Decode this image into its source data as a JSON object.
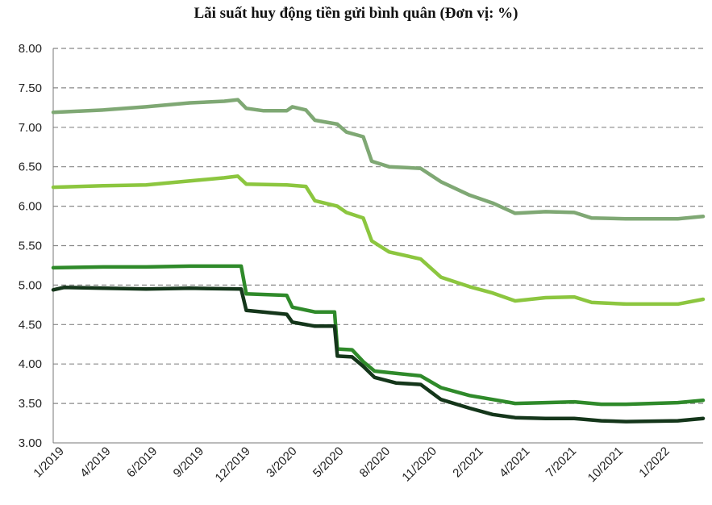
{
  "chart_data": {
    "type": "line",
    "title": "Lãi suất huy động tiền gửi bình quân (Đơn vị: %)",
    "xlabel": "",
    "ylabel": "",
    "ylim": [
      3.0,
      8.0
    ],
    "y_ticks": [
      "8.00",
      "7.50",
      "7.00",
      "6.50",
      "6.00",
      "5.50",
      "5.00",
      "4.50",
      "4.00",
      "3.50",
      "3.00"
    ],
    "x_ticks": [
      "1/2019",
      "4/2019",
      "6/2019",
      "9/2019",
      "12/2019",
      "3/2020",
      "5/2020",
      "8/2020",
      "11/2020",
      "2/2021",
      "4/2021",
      "7/2021",
      "10/2021",
      "1/2022"
    ],
    "x_domain": [
      "2019-01",
      "2022-03"
    ],
    "grid": true,
    "legend": "none",
    "series": [
      {
        "color": "#7fa874",
        "points": [
          [
            "2019-01-01",
            7.19
          ],
          [
            "2019-04-01",
            7.22
          ],
          [
            "2019-06-15",
            7.26
          ],
          [
            "2019-09-01",
            7.31
          ],
          [
            "2019-11-01",
            7.33
          ],
          [
            "2019-11-25",
            7.35
          ],
          [
            "2019-12-10",
            7.24
          ],
          [
            "2020-01-10",
            7.21
          ],
          [
            "2020-02-20",
            7.21
          ],
          [
            "2020-03-01",
            7.26
          ],
          [
            "2020-03-25",
            7.22
          ],
          [
            "2020-04-10",
            7.09
          ],
          [
            "2020-05-20",
            7.04
          ],
          [
            "2020-06-05",
            6.94
          ],
          [
            "2020-07-05",
            6.88
          ],
          [
            "2020-07-20",
            6.57
          ],
          [
            "2020-08-20",
            6.5
          ],
          [
            "2020-10-15",
            6.48
          ],
          [
            "2020-11-20",
            6.31
          ],
          [
            "2021-01-10",
            6.14
          ],
          [
            "2021-02-20",
            6.04
          ],
          [
            "2021-04-01",
            5.91
          ],
          [
            "2021-05-25",
            5.93
          ],
          [
            "2021-07-15",
            5.92
          ],
          [
            "2021-08-15",
            5.85
          ],
          [
            "2021-10-15",
            5.84
          ],
          [
            "2022-01-15",
            5.84
          ],
          [
            "2022-03-01",
            5.87
          ]
        ]
      },
      {
        "color": "#8cc63f",
        "points": [
          [
            "2019-01-01",
            6.24
          ],
          [
            "2019-04-01",
            6.26
          ],
          [
            "2019-06-15",
            6.27
          ],
          [
            "2019-09-01",
            6.32
          ],
          [
            "2019-11-01",
            6.36
          ],
          [
            "2019-11-25",
            6.38
          ],
          [
            "2019-12-10",
            6.28
          ],
          [
            "2020-02-20",
            6.27
          ],
          [
            "2020-03-25",
            6.25
          ],
          [
            "2020-04-10",
            6.07
          ],
          [
            "2020-05-20",
            6.0
          ],
          [
            "2020-06-05",
            5.92
          ],
          [
            "2020-07-05",
            5.85
          ],
          [
            "2020-07-20",
            5.56
          ],
          [
            "2020-08-20",
            5.42
          ],
          [
            "2020-10-15",
            5.33
          ],
          [
            "2020-11-20",
            5.1
          ],
          [
            "2021-01-10",
            4.98
          ],
          [
            "2021-02-20",
            4.9
          ],
          [
            "2021-04-01",
            4.8
          ],
          [
            "2021-05-25",
            4.84
          ],
          [
            "2021-07-15",
            4.85
          ],
          [
            "2021-08-15",
            4.78
          ],
          [
            "2021-10-15",
            4.76
          ],
          [
            "2022-01-15",
            4.76
          ],
          [
            "2022-03-01",
            4.82
          ]
        ]
      },
      {
        "color": "#2f8a2a",
        "points": [
          [
            "2019-01-01",
            5.22
          ],
          [
            "2019-04-01",
            5.23
          ],
          [
            "2019-06-15",
            5.23
          ],
          [
            "2019-09-01",
            5.24
          ],
          [
            "2019-12-01",
            5.24
          ],
          [
            "2019-12-10",
            4.89
          ],
          [
            "2020-02-20",
            4.87
          ],
          [
            "2020-03-01",
            4.72
          ],
          [
            "2020-04-10",
            4.66
          ],
          [
            "2020-05-15",
            4.66
          ],
          [
            "2020-05-20",
            4.19
          ],
          [
            "2020-06-15",
            4.18
          ],
          [
            "2020-07-05",
            4.03
          ],
          [
            "2020-07-25",
            3.91
          ],
          [
            "2020-10-15",
            3.85
          ],
          [
            "2020-11-20",
            3.7
          ],
          [
            "2021-01-10",
            3.6
          ],
          [
            "2021-02-20",
            3.55
          ],
          [
            "2021-04-01",
            3.5
          ],
          [
            "2021-05-25",
            3.51
          ],
          [
            "2021-07-15",
            3.52
          ],
          [
            "2021-09-01",
            3.49
          ],
          [
            "2021-10-15",
            3.49
          ],
          [
            "2022-01-15",
            3.51
          ],
          [
            "2022-03-01",
            3.54
          ]
        ]
      },
      {
        "color": "#14361a",
        "points": [
          [
            "2019-01-01",
            4.94
          ],
          [
            "2019-01-20",
            4.97
          ],
          [
            "2019-04-01",
            4.96
          ],
          [
            "2019-06-15",
            4.95
          ],
          [
            "2019-09-01",
            4.96
          ],
          [
            "2019-12-01",
            4.95
          ],
          [
            "2019-12-10",
            4.68
          ],
          [
            "2020-02-20",
            4.63
          ],
          [
            "2020-03-01",
            4.53
          ],
          [
            "2020-04-10",
            4.48
          ],
          [
            "2020-05-15",
            4.48
          ],
          [
            "2020-05-20",
            4.1
          ],
          [
            "2020-06-15",
            4.09
          ],
          [
            "2020-07-05",
            3.97
          ],
          [
            "2020-07-25",
            3.83
          ],
          [
            "2020-09-01",
            3.76
          ],
          [
            "2020-10-15",
            3.74
          ],
          [
            "2020-11-20",
            3.55
          ],
          [
            "2021-01-10",
            3.44
          ],
          [
            "2021-02-20",
            3.36
          ],
          [
            "2021-04-01",
            3.32
          ],
          [
            "2021-05-25",
            3.31
          ],
          [
            "2021-07-15",
            3.31
          ],
          [
            "2021-09-01",
            3.28
          ],
          [
            "2021-10-15",
            3.27
          ],
          [
            "2022-01-15",
            3.28
          ],
          [
            "2022-03-01",
            3.31
          ]
        ]
      }
    ]
  }
}
